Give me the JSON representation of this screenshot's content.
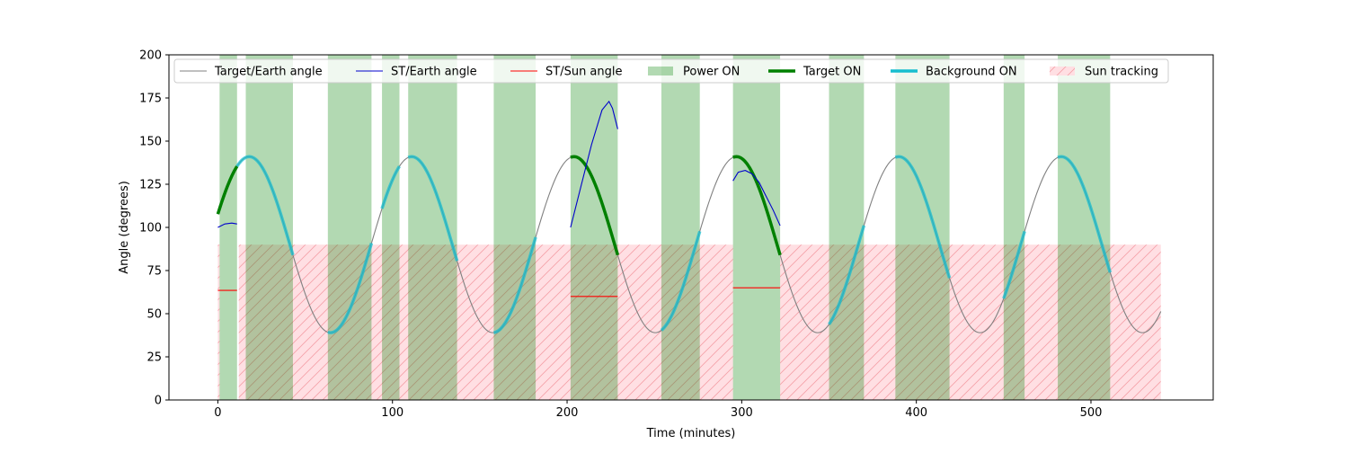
{
  "chart_data": {
    "type": "line",
    "title": "",
    "xlabel": "Time (minutes)",
    "ylabel": "Angle (degrees)",
    "xlim": [
      -28,
      570
    ],
    "ylim": [
      0,
      200
    ],
    "xticks": [
      0,
      100,
      200,
      300,
      400,
      500
    ],
    "yticks": [
      0,
      25,
      50,
      75,
      100,
      125,
      150,
      175,
      200
    ],
    "grid": false,
    "legend_position": "top",
    "legend": [
      {
        "label": "Target/Earth angle",
        "kind": "line",
        "color": "#808080",
        "width": 1
      },
      {
        "label": "ST/Earth angle",
        "kind": "line",
        "color": "#0000cc",
        "width": 1
      },
      {
        "label": "ST/Sun angle",
        "kind": "line",
        "color": "#ff0000",
        "width": 1
      },
      {
        "label": "Power ON",
        "kind": "patch",
        "color": "#b2d8b2"
      },
      {
        "label": "Target ON",
        "kind": "line",
        "color": "#008000",
        "width": 3
      },
      {
        "label": "Background ON",
        "kind": "line",
        "color": "#17becf",
        "width": 3
      },
      {
        "label": "Sun tracking",
        "kind": "hatch",
        "color": "#ff9aa8"
      }
    ],
    "target_earth_model": {
      "mean": 90,
      "amplitude": 51,
      "period": 93,
      "peak_at": 18,
      "t_start": 0,
      "t_end": 540
    },
    "power_on_intervals": [
      [
        1,
        11
      ],
      [
        16,
        43
      ],
      [
        63,
        88
      ],
      [
        94,
        104
      ],
      [
        109,
        137
      ],
      [
        158,
        182
      ],
      [
        202,
        229
      ],
      [
        254,
        276
      ],
      [
        295,
        322
      ],
      [
        350,
        370
      ],
      [
        388,
        419
      ],
      [
        450,
        462
      ],
      [
        481,
        511
      ]
    ],
    "sun_tracking_intervals": [
      [
        0,
        1
      ],
      [
        12,
        295
      ],
      [
        322,
        540
      ]
    ],
    "sun_tracking_level": 90,
    "target_on_intervals": [
      [
        0,
        11
      ],
      [
        202,
        229
      ],
      [
        295,
        322
      ]
    ],
    "background_on_intervals": [
      [
        11,
        43
      ],
      [
        63,
        88
      ],
      [
        94,
        104
      ],
      [
        109,
        137
      ],
      [
        158,
        182
      ],
      [
        254,
        276
      ],
      [
        350,
        370
      ],
      [
        388,
        419
      ],
      [
        450,
        462
      ],
      [
        481,
        511
      ]
    ],
    "st_earth_series": [
      {
        "x": [
          0,
          4,
          8,
          11
        ],
        "y": [
          100,
          102,
          102.5,
          102
        ]
      },
      {
        "x": [
          202,
          208,
          214,
          220,
          224,
          226,
          229
        ],
        "y": [
          100,
          124,
          148,
          168,
          173,
          169,
          157
        ]
      },
      {
        "x": [
          295,
          298,
          302,
          306,
          310,
          314,
          318,
          322
        ],
        "y": [
          127,
          132,
          133,
          131,
          126,
          118,
          110,
          101
        ]
      }
    ],
    "st_sun_series": [
      {
        "x": [
          0,
          11
        ],
        "y": [
          63.5,
          63.5
        ]
      },
      {
        "x": [
          202,
          229
        ],
        "y": [
          60,
          60
        ]
      },
      {
        "x": [
          295,
          322
        ],
        "y": [
          65,
          65
        ]
      }
    ]
  }
}
